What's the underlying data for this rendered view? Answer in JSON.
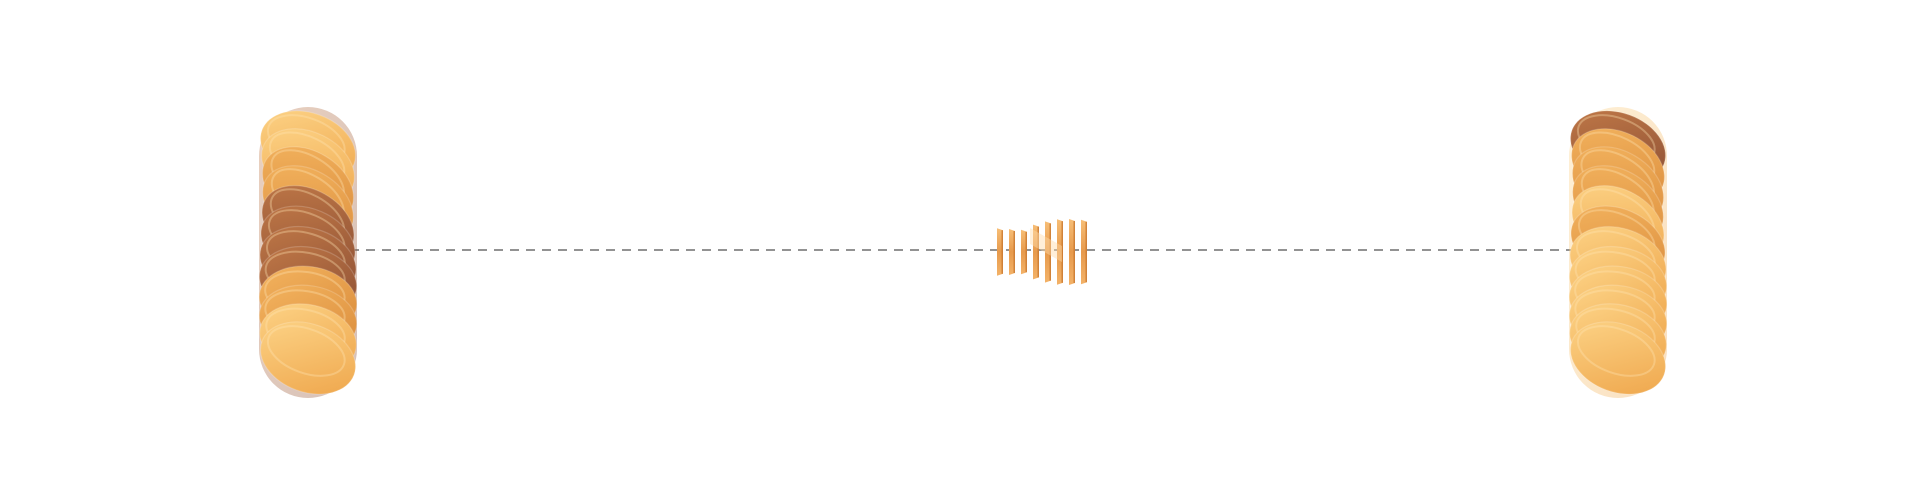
{
  "scene": {
    "background": "#ffffff",
    "connector": {
      "style": "dashed",
      "color": "#6e6e6e"
    },
    "palette": {
      "light": "#fbc670",
      "mid": "#eea449",
      "deep": "#d98a3a",
      "dark": "#a8603a",
      "shadow": "#8a4d33"
    },
    "objects": [
      {
        "name": "left-twisted-sculpture",
        "description_icon": "twisted-disc-stack-icon",
        "tone": "warm-dark-center"
      },
      {
        "name": "center-slatted-object",
        "description_icon": "slatted-bowtie-icon",
        "tone": "orange"
      },
      {
        "name": "right-twisted-sculpture",
        "description_icon": "twisted-disc-stack-icon",
        "tone": "golden-dark-top"
      }
    ]
  }
}
